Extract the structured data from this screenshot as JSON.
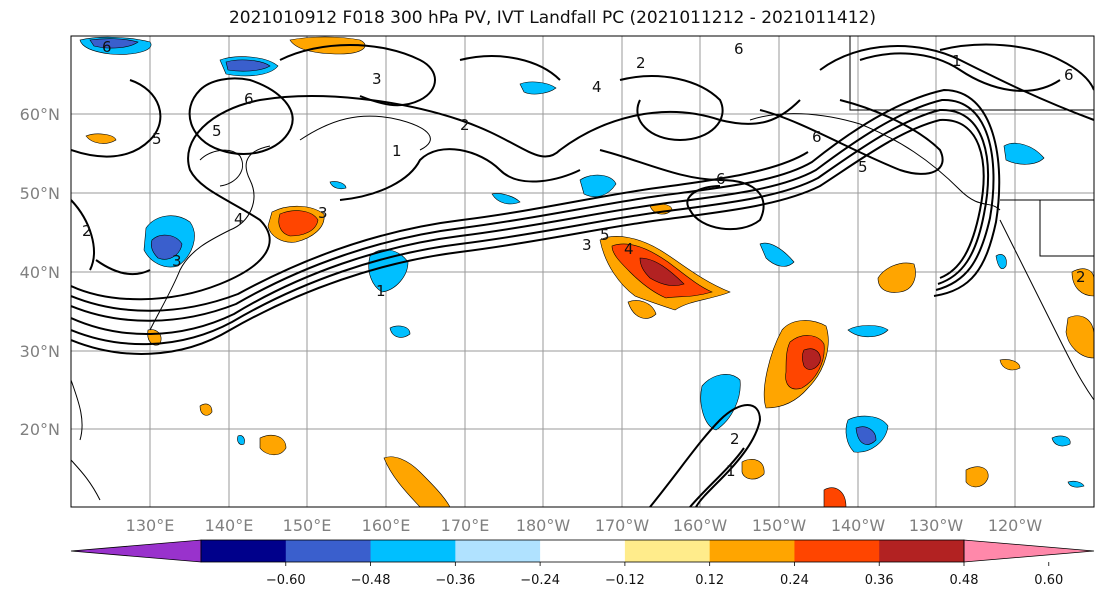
{
  "title": "2021010912 F018 300 hPa PV, IVT Landfall PC (2021011212 - 2021011412)",
  "lon_labels": [
    "130°E",
    "140°E",
    "150°E",
    "160°E",
    "170°E",
    "180°W",
    "170°W",
    "160°W",
    "150°W",
    "140°W",
    "130°W",
    "120°W"
  ],
  "lat_labels": [
    "60°N",
    "50°N",
    "40°N",
    "30°N",
    "20°N"
  ],
  "colorbar": {
    "tick_labels": [
      "−0.60",
      "−0.48",
      "−0.36",
      "−0.24",
      "−0.12",
      "0.12",
      "0.24",
      "0.36",
      "0.48",
      "0.60"
    ],
    "colors": [
      "#9932cc",
      "#00008b",
      "#3a5fcd",
      "#00bfff",
      "#b0e2ff",
      "#ffffff",
      "#ffec8b",
      "#ffa500",
      "#ff4500",
      "#b22222",
      "#ff88aa"
    ]
  },
  "contour_labels": [
    "6",
    "6",
    "6",
    "6",
    "5",
    "5",
    "5",
    "5",
    "4",
    "4",
    "4",
    "3",
    "3",
    "3",
    "3",
    "2",
    "2",
    "2",
    "2",
    "2",
    "1",
    "1",
    "1",
    "1",
    "6",
    "6"
  ]
}
